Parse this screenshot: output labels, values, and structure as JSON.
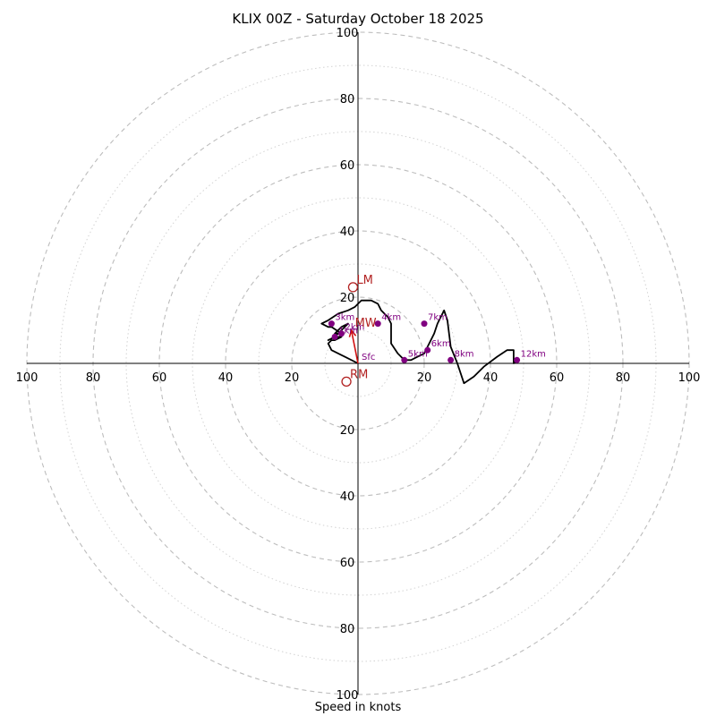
{
  "chart_data": {
    "type": "hodograph",
    "title": "KLIX 00Z - Saturday October 18 2025",
    "xlabel": "Speed in knots",
    "ylabel": "",
    "xlim": [
      -100,
      100
    ],
    "ylim": [
      -100,
      100
    ],
    "major_rings": [
      20,
      40,
      60,
      80,
      100
    ],
    "minor_rings": [
      10,
      30,
      50,
      70,
      90
    ],
    "tick_labels": {
      "x": [
        {
          "value": -100,
          "label": "100"
        },
        {
          "value": -80,
          "label": "80"
        },
        {
          "value": -60,
          "label": "60"
        },
        {
          "value": -40,
          "label": "40"
        },
        {
          "value": -20,
          "label": "20"
        },
        {
          "value": 20,
          "label": "20"
        },
        {
          "value": 40,
          "label": "40"
        },
        {
          "value": 60,
          "label": "60"
        },
        {
          "value": 80,
          "label": "80"
        },
        {
          "value": 100,
          "label": "100"
        }
      ],
      "y": [
        {
          "value": 100,
          "label": "100"
        },
        {
          "value": 80,
          "label": "80"
        },
        {
          "value": 60,
          "label": "60"
        },
        {
          "value": 40,
          "label": "40"
        },
        {
          "value": 20,
          "label": "20"
        },
        {
          "value": -20,
          "label": "20"
        },
        {
          "value": -40,
          "label": "40"
        },
        {
          "value": -60,
          "label": "60"
        },
        {
          "value": -80,
          "label": "80"
        },
        {
          "value": -100,
          "label": "100"
        }
      ]
    },
    "wind_trace": {
      "unit": "knots",
      "u": [
        0,
        -4,
        -8,
        -9,
        -8,
        -7,
        -5,
        -7,
        -9,
        -7,
        -5,
        -3,
        -5,
        -7,
        -6,
        -5,
        -8,
        -9,
        -11,
        -9,
        -6,
        -3,
        -1,
        1,
        4,
        6,
        7,
        9,
        10,
        10,
        10,
        10,
        12,
        14,
        16,
        18,
        20,
        21,
        22,
        23,
        24,
        25,
        26,
        27,
        28,
        30,
        32,
        35,
        38,
        42,
        45,
        47,
        47,
        47,
        48
      ],
      "v": [
        0,
        2,
        4,
        6,
        7,
        7,
        8,
        8,
        7,
        8,
        10,
        12,
        11,
        9,
        9,
        9,
        11,
        11,
        12,
        13,
        15,
        16,
        17,
        19,
        19,
        18,
        16,
        14,
        12,
        10,
        8,
        6,
        3,
        1,
        1,
        2,
        3,
        5,
        7,
        9,
        12,
        14,
        16,
        13,
        5,
        0,
        -6,
        -4,
        -1,
        2,
        4,
        4,
        1,
        0,
        1
      ]
    },
    "height_markers": [
      {
        "label": "Sfc",
        "u": 0,
        "v": 0
      },
      {
        "label": "1km",
        "u": -7,
        "v": 8
      },
      {
        "label": "2km",
        "u": -5,
        "v": 9
      },
      {
        "label": "3km",
        "u": -8,
        "v": 12
      },
      {
        "label": "4km",
        "u": 6,
        "v": 12
      },
      {
        "label": "5km",
        "u": 14,
        "v": 1
      },
      {
        "label": "6km",
        "u": 21,
        "v": 4
      },
      {
        "label": "7km",
        "u": 20,
        "v": 12
      },
      {
        "label": "8km",
        "u": 28,
        "v": 1
      },
      {
        "label": "12km",
        "u": 48,
        "v": 1
      }
    ],
    "storm_motions": [
      {
        "label": "LM",
        "u": -1.5,
        "v": 23
      },
      {
        "label": "RM",
        "u": -3.5,
        "v": -5.5
      },
      {
        "label": "MW",
        "u": -2,
        "v": 10
      }
    ],
    "shear_vector": {
      "from_u": 0,
      "from_v": 0,
      "to_u": -2,
      "to_v": 10
    }
  },
  "colors": {
    "trace": "#000000",
    "height_markers": "#800080",
    "storm_motion": "#b22222",
    "shear_vector": "#d01010",
    "rings": "#bdbdbd"
  }
}
